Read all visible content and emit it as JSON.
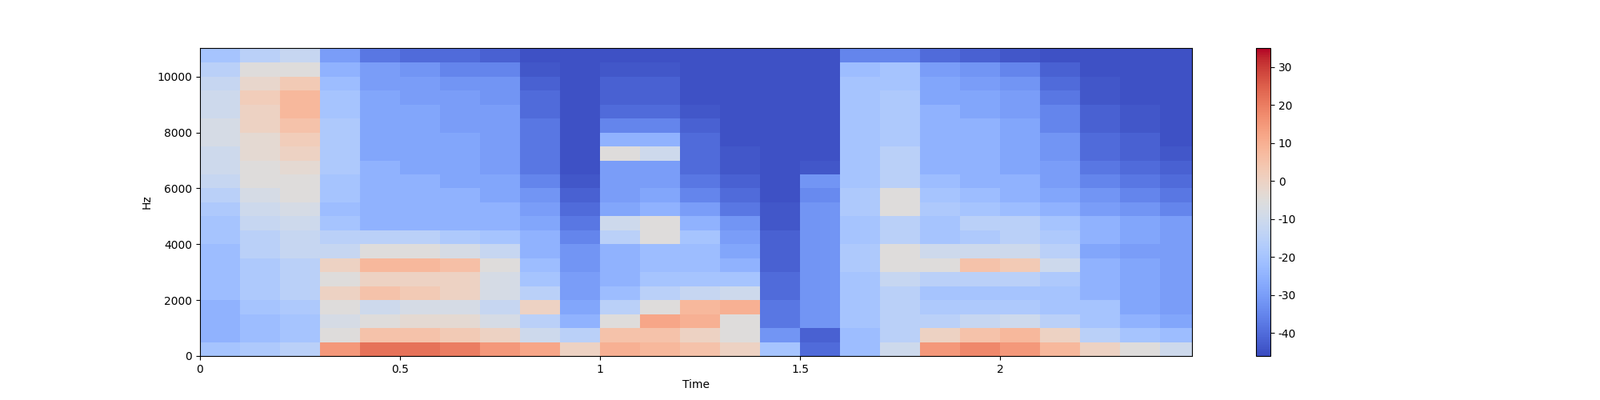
{
  "chart_data": {
    "type": "heatmap",
    "x_label": "Time",
    "y_label": "Hz",
    "color": "coolwarm",
    "xlim": [
      0,
      2.48
    ],
    "xticks": [
      0,
      0.5,
      1,
      1.5,
      2
    ],
    "ylim": [
      0,
      11025
    ],
    "yticks": [
      0,
      2000,
      4000,
      6000,
      8000,
      10000
    ],
    "x_edges": [
      0,
      0.1,
      0.2,
      0.3,
      0.4,
      0.5,
      0.6,
      0.7,
      0.8,
      0.9,
      1.0,
      1.1,
      1.2,
      1.3,
      1.4,
      1.5,
      1.6,
      1.7,
      1.8,
      1.9,
      2.0,
      2.1,
      2.2,
      2.3,
      2.4,
      2.48
    ],
    "y_edges": [
      0,
      500,
      1000,
      1500,
      2000,
      2500,
      3000,
      3500,
      4000,
      4500,
      5000,
      5500,
      6000,
      6500,
      7000,
      7500,
      8000,
      8500,
      9000,
      9500,
      10000,
      10500,
      11025
    ],
    "cells": [
      [
        -20,
        -25,
        -25,
        -25,
        -22,
        -22,
        -22,
        -22,
        -20,
        -20,
        -18,
        -15,
        -12,
        -10,
        -10,
        -8,
        -8,
        -10,
        -10,
        -12,
        -15,
        -20
      ],
      [
        -18,
        -22,
        -22,
        -20,
        -18,
        -18,
        -18,
        -15,
        -15,
        -12,
        -10,
        -8,
        -5,
        -5,
        -3,
        -3,
        0,
        0,
        2,
        -2,
        -5,
        -15
      ],
      [
        -15,
        -20,
        -20,
        -18,
        -15,
        -15,
        -15,
        -12,
        -12,
        -10,
        -8,
        -5,
        -5,
        -3,
        0,
        2,
        5,
        8,
        8,
        3,
        -5,
        -12
      ],
      [
        15,
        -5,
        -8,
        -5,
        0,
        -5,
        0,
        -12,
        -15,
        -20,
        -22,
        -20,
        -20,
        -18,
        -18,
        -18,
        -18,
        -20,
        -20,
        -22,
        -25,
        -30
      ],
      [
        22,
        5,
        -5,
        -10,
        5,
        0,
        8,
        -5,
        -15,
        -25,
        -25,
        -25,
        -25,
        -25,
        -28,
        -28,
        -28,
        -28,
        -28,
        -30,
        -30,
        -38
      ],
      [
        22,
        5,
        -3,
        -8,
        3,
        0,
        8,
        -5,
        -15,
        -25,
        -25,
        -25,
        -25,
        -28,
        -28,
        -28,
        -28,
        -28,
        -30,
        -30,
        -32,
        -40
      ],
      [
        20,
        3,
        -3,
        -8,
        0,
        0,
        6,
        -8,
        -18,
        -25,
        -25,
        -25,
        -28,
        -28,
        -28,
        -28,
        -30,
        -30,
        -30,
        -32,
        -35,
        -40
      ],
      [
        15,
        0,
        -8,
        -12,
        -8,
        -8,
        -5,
        -12,
        -20,
        -25,
        -25,
        -28,
        -28,
        -30,
        -30,
        -30,
        -30,
        -30,
        -32,
        -32,
        -35,
        -42
      ],
      [
        12,
        -10,
        -15,
        0,
        -15,
        -20,
        -22,
        -25,
        -25,
        -28,
        -30,
        -32,
        -35,
        -38,
        -38,
        -38,
        -38,
        -40,
        -40,
        -42,
        -44,
        -45
      ],
      [
        0,
        -15,
        -25,
        -28,
        -30,
        -30,
        -32,
        -32,
        -35,
        -38,
        -40,
        -42,
        -44,
        -45,
        -45,
        -45,
        -45,
        -45,
        -45,
        -45,
        -45,
        -45
      ],
      [
        10,
        5,
        -5,
        -15,
        -22,
        -25,
        -25,
        -25,
        -15,
        -10,
        -28,
        -30,
        -30,
        -30,
        -5,
        -25,
        -35,
        -40,
        -42,
        -42,
        -44,
        -45
      ],
      [
        8,
        5,
        12,
        -5,
        -15,
        -20,
        -22,
        -22,
        -5,
        -5,
        -25,
        -28,
        -30,
        -30,
        -10,
        -25,
        -35,
        -40,
        -42,
        -42,
        -44,
        -45
      ],
      [
        5,
        0,
        10,
        8,
        -12,
        -20,
        -22,
        -22,
        -20,
        -25,
        -30,
        -35,
        -38,
        -40,
        -40,
        -40,
        -42,
        -44,
        -45,
        -45,
        -45,
        -45
      ],
      [
        0,
        -5,
        -5,
        10,
        -10,
        -20,
        -25,
        -28,
        -30,
        -32,
        -38,
        -40,
        -42,
        -44,
        -44,
        -45,
        -45,
        -45,
        -45,
        -45,
        -45,
        -45
      ],
      [
        -20,
        -32,
        -38,
        -38,
        -40,
        -40,
        -42,
        -42,
        -42,
        -44,
        -44,
        -45,
        -45,
        -45,
        -45,
        -45,
        -45,
        -45,
        -45,
        -45,
        -45,
        -45
      ],
      [
        -40,
        -42,
        -32,
        -32,
        -32,
        -32,
        -32,
        -32,
        -32,
        -32,
        -32,
        -34,
        -32,
        -44,
        -45,
        -45,
        -45,
        -45,
        -45,
        -45,
        -45,
        -45
      ],
      [
        -22,
        -22,
        -20,
        -20,
        -20,
        -20,
        -18,
        -18,
        -20,
        -20,
        -18,
        -18,
        -20,
        -20,
        -20,
        -20,
        -20,
        -20,
        -20,
        -20,
        -22,
        -35
      ],
      [
        -10,
        -15,
        -15,
        -15,
        -15,
        -12,
        -5,
        -5,
        -15,
        -15,
        -5,
        -5,
        -15,
        -15,
        -15,
        -18,
        -18,
        -18,
        -18,
        -20,
        -20,
        -35
      ],
      [
        15,
        0,
        -15,
        -18,
        -20,
        -15,
        -5,
        -10,
        -20,
        -20,
        -18,
        -20,
        -22,
        -25,
        -25,
        -25,
        -25,
        -25,
        -28,
        -28,
        -30,
        -40
      ],
      [
        18,
        5,
        -12,
        -18,
        -20,
        -15,
        5,
        -10,
        -18,
        -15,
        -20,
        -22,
        -25,
        -25,
        -25,
        -25,
        -25,
        -28,
        -28,
        -30,
        -32,
        -42
      ],
      [
        15,
        8,
        -10,
        -18,
        -20,
        -15,
        3,
        -10,
        -15,
        -15,
        -22,
        -25,
        -25,
        -28,
        -28,
        -28,
        -28,
        -30,
        -30,
        -32,
        -35,
        -44
      ],
      [
        8,
        0,
        -15,
        -20,
        -20,
        -18,
        -10,
        -15,
        -18,
        -20,
        -25,
        -28,
        -30,
        -30,
        -32,
        -32,
        -35,
        -35,
        -38,
        -40,
        -42,
        -45
      ],
      [
        0,
        -15,
        -20,
        -20,
        -25,
        -25,
        -25,
        -28,
        -25,
        -25,
        -30,
        -32,
        -35,
        -38,
        -40,
        -40,
        -42,
        -42,
        -44,
        -44,
        -45,
        -45
      ],
      [
        -5,
        -20,
        -25,
        -28,
        -28,
        -28,
        -28,
        -30,
        -28,
        -28,
        -32,
        -35,
        -38,
        -40,
        -42,
        -42,
        -44,
        -44,
        -45,
        -45,
        -45,
        -45
      ],
      [
        -10,
        -22,
        -28,
        -30,
        -30,
        -30,
        -30,
        -30,
        -30,
        -30,
        -35,
        -38,
        -40,
        -42,
        -44,
        -45,
        -45,
        -45,
        -45,
        -45,
        -45,
        -45
      ]
    ],
    "color_range": [
      -46,
      35
    ],
    "color_ticks": [
      -40,
      -30,
      -20,
      -10,
      0,
      10,
      20,
      30
    ]
  }
}
